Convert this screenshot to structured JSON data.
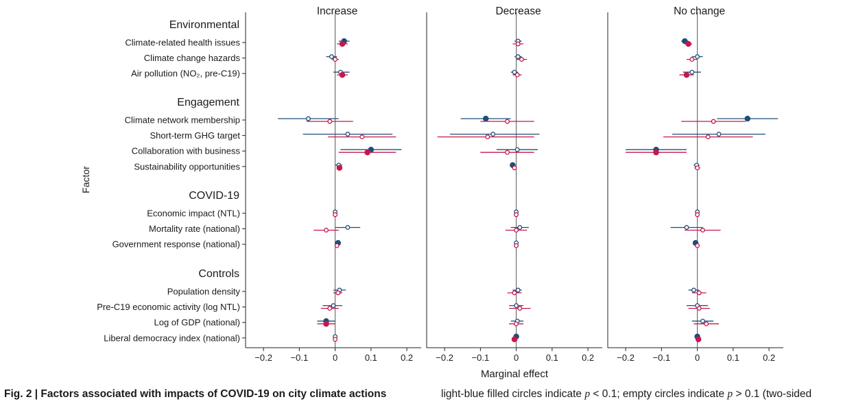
{
  "chart_data": {
    "type": "scatter",
    "subtype": "dot-and-whisker forest plot, three panels",
    "panels": [
      "Increase",
      "Decrease",
      "No change"
    ],
    "xlabel": "Marginal effect",
    "ylabel": "Factor",
    "xlim": [
      -0.25,
      0.24
    ],
    "xticks": [
      -0.2,
      -0.1,
      0,
      0.1,
      0.2
    ],
    "xtick_labels": [
      "−0.2",
      "−0.1",
      "0",
      "0.1",
      "0.2"
    ],
    "grid": false,
    "colors": {
      "series_a": "#1f4e79",
      "series_b": "#c8174a",
      "zero_line": "#555555",
      "axis": "#222222"
    },
    "groups": [
      {
        "name": "Environmental",
        "factors": [
          "Climate-related health issues",
          "Climate change hazards",
          "Air pollution (NO₂, pre-C19)"
        ]
      },
      {
        "name": "Engagement",
        "factors": [
          "Climate network membership",
          "Short-term GHG target",
          "Collaboration with business",
          "Sustainability opportunities"
        ]
      },
      {
        "name": "COVID-19",
        "factors": [
          "Economic impact (NTL)",
          "Mortality rate (national)",
          "Government response (national)"
        ]
      },
      {
        "name": "Controls",
        "factors": [
          "Population density",
          "Pre-C19 economic activity (log NTL)",
          "Log of GDP (national)",
          "Liberal democracy index (national)"
        ]
      }
    ],
    "series": [
      {
        "color": "#1f4e79",
        "estimates": [
          [
            [
              0.025,
              0.01,
              0.04,
              true
            ],
            [
              -0.01,
              -0.025,
              0.005,
              false
            ],
            [
              0.015,
              -0.005,
              0.04,
              false
            ],
            [
              -0.075,
              -0.16,
              0.01,
              false
            ],
            [
              0.035,
              -0.09,
              0.16,
              false
            ],
            [
              0.1,
              0.015,
              0.185,
              true
            ],
            [
              0.01,
              0.0,
              0.02,
              false
            ],
            [
              0.0,
              -0.005,
              0.005,
              false
            ],
            [
              0.035,
              0.0,
              0.07,
              false
            ],
            [
              0.008,
              0.004,
              0.012,
              true
            ],
            [
              0.012,
              -0.005,
              0.03,
              false
            ],
            [
              -0.005,
              -0.035,
              0.02,
              false
            ],
            [
              -0.025,
              -0.05,
              0.0,
              true
            ],
            [
              0.0,
              -0.004,
              0.004,
              false
            ]
          ],
          [
            [
              0.005,
              -0.005,
              0.015,
              false
            ],
            [
              0.005,
              -0.005,
              0.015,
              false
            ],
            [
              -0.005,
              -0.015,
              0.005,
              false
            ],
            [
              -0.085,
              -0.155,
              -0.015,
              true
            ],
            [
              -0.065,
              -0.185,
              0.065,
              false
            ],
            [
              0.003,
              -0.055,
              0.06,
              false
            ],
            [
              -0.01,
              -0.015,
              -0.005,
              true
            ],
            [
              0.0,
              -0.004,
              0.004,
              false
            ],
            [
              0.01,
              -0.015,
              0.035,
              false
            ],
            [
              0.0,
              -0.003,
              0.003,
              false
            ],
            [
              0.005,
              -0.01,
              0.015,
              false
            ],
            [
              0.0,
              -0.02,
              0.02,
              false
            ],
            [
              0.003,
              -0.015,
              0.02,
              false
            ],
            [
              0.0,
              -0.003,
              0.003,
              true
            ]
          ],
          [
            [
              -0.035,
              -0.045,
              -0.025,
              true
            ],
            [
              0.0,
              -0.015,
              0.015,
              false
            ],
            [
              -0.015,
              -0.04,
              0.01,
              false
            ],
            [
              0.14,
              0.055,
              0.225,
              true
            ],
            [
              0.06,
              -0.07,
              0.19,
              false
            ],
            [
              -0.115,
              -0.2,
              -0.03,
              true
            ],
            [
              -0.002,
              -0.01,
              0.006,
              false
            ],
            [
              0.0,
              -0.004,
              0.004,
              false
            ],
            [
              -0.03,
              -0.075,
              0.015,
              false
            ],
            [
              -0.005,
              -0.008,
              -0.002,
              true
            ],
            [
              -0.01,
              -0.025,
              0.005,
              false
            ],
            [
              0.0,
              -0.03,
              0.03,
              false
            ],
            [
              0.015,
              -0.015,
              0.045,
              false
            ],
            [
              0.0,
              -0.003,
              0.003,
              true
            ]
          ]
        ]
      },
      {
        "color": "#c8174a",
        "estimates": [
          [
            [
              0.02,
              0.005,
              0.035,
              true
            ],
            [
              0.0,
              -0.01,
              0.01,
              false
            ],
            [
              0.02,
              0.005,
              0.035,
              true
            ],
            [
              -0.015,
              -0.08,
              0.05,
              false
            ],
            [
              0.075,
              -0.02,
              0.17,
              false
            ],
            [
              0.09,
              0.01,
              0.17,
              true
            ],
            [
              0.012,
              0.004,
              0.02,
              true
            ],
            [
              0.0,
              -0.004,
              0.004,
              false
            ],
            [
              -0.025,
              -0.06,
              0.01,
              false
            ],
            [
              0.005,
              0.001,
              0.009,
              false
            ],
            [
              0.008,
              -0.005,
              0.02,
              false
            ],
            [
              -0.015,
              -0.04,
              0.01,
              false
            ],
            [
              -0.025,
              -0.05,
              0.0,
              true
            ],
            [
              0.0,
              -0.004,
              0.004,
              false
            ]
          ],
          [
            [
              0.005,
              -0.01,
              0.02,
              false
            ],
            [
              0.015,
              0.0,
              0.03,
              false
            ],
            [
              0.003,
              -0.01,
              0.015,
              false
            ],
            [
              -0.025,
              -0.1,
              0.05,
              false
            ],
            [
              -0.08,
              -0.22,
              0.05,
              false
            ],
            [
              -0.025,
              -0.1,
              0.05,
              false
            ],
            [
              -0.005,
              -0.01,
              0.0,
              false
            ],
            [
              0.0,
              -0.003,
              0.003,
              false
            ],
            [
              0.0,
              -0.03,
              0.03,
              false
            ],
            [
              0.0,
              -0.003,
              0.003,
              false
            ],
            [
              -0.005,
              -0.025,
              0.015,
              false
            ],
            [
              0.01,
              -0.02,
              0.04,
              false
            ],
            [
              0.0,
              -0.02,
              0.02,
              false
            ],
            [
              -0.005,
              -0.008,
              -0.002,
              true
            ]
          ],
          [
            [
              -0.025,
              -0.035,
              -0.015,
              true
            ],
            [
              -0.015,
              -0.03,
              0.0,
              false
            ],
            [
              -0.03,
              -0.05,
              -0.01,
              true
            ],
            [
              0.045,
              -0.045,
              0.135,
              false
            ],
            [
              0.03,
              -0.095,
              0.155,
              false
            ],
            [
              -0.115,
              -0.2,
              -0.03,
              true
            ],
            [
              0.0,
              -0.008,
              0.008,
              false
            ],
            [
              0.0,
              -0.003,
              0.003,
              false
            ],
            [
              0.015,
              -0.035,
              0.065,
              false
            ],
            [
              0.0,
              -0.003,
              0.003,
              false
            ],
            [
              0.005,
              -0.015,
              0.025,
              false
            ],
            [
              0.005,
              -0.025,
              0.035,
              false
            ],
            [
              0.025,
              -0.01,
              0.06,
              false
            ],
            [
              0.003,
              0.0,
              0.006,
              true
            ]
          ]
        ]
      }
    ]
  },
  "caption": {
    "title": "Fig. 2 | Factors associated with impacts of COVID-19 on city climate actions",
    "text_1": "light-blue filled circles indicate ",
    "p_symbol_1": "p",
    "text_2": " < 0.1; empty circles indicate ",
    "p_symbol_2": "p",
    "text_3": " > 0.1 (two-sided"
  }
}
